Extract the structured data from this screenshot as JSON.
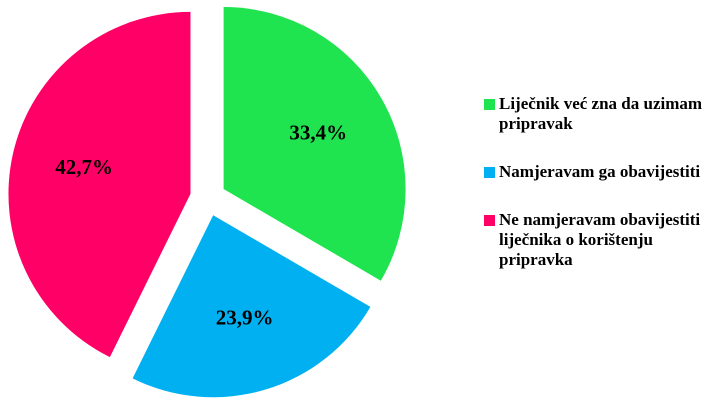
{
  "chart_data": {
    "type": "pie",
    "categories": [
      "Liječnik već zna da uzimam pripravak",
      "Namjeravam ga obavijestiti",
      "Ne namjeravam obavijestiti liječnika o korištenju pripravka"
    ],
    "values": [
      33.4,
      23.9,
      42.7
    ],
    "value_labels": [
      "33,4%",
      "23,9%",
      "42,7%"
    ],
    "colors": [
      "#1fe34f",
      "#00b0f0",
      "#ff0066"
    ],
    "legend": "right"
  }
}
